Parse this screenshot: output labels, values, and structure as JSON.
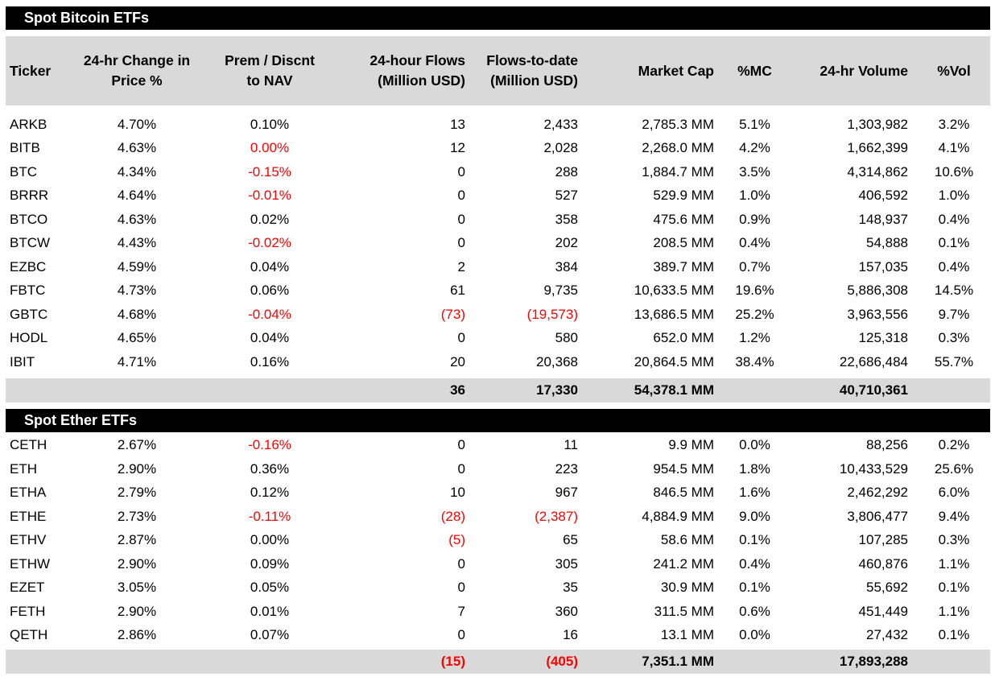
{
  "colors": {
    "negative_value": "#ff0000",
    "band_gray": "#d9d9d9",
    "section_bar_background": "#000000",
    "section_bar_text": "#ffffff",
    "body_text": "#000000",
    "page_background": "#ffffff"
  },
  "header_lines": [
    [
      "Ticker"
    ],
    [
      "24-hr Change in",
      "Price %"
    ],
    [
      "Prem / Discnt",
      "to NAV"
    ],
    [
      "24-hour Flows",
      "(Million USD)"
    ],
    [
      "Flows-to-date",
      "(Million USD)"
    ],
    [
      "Market Cap"
    ],
    [
      "%MC"
    ],
    [
      "24-hr Volume"
    ],
    [
      "%Vol"
    ]
  ],
  "chart_data": [
    {
      "type": "table",
      "title": "Spot Bitcoin ETFs",
      "show_headers": true,
      "columns": [
        "Ticker",
        "24-hr Change in Price %",
        "Prem / Discnt to NAV",
        "24-hour Flows (Million USD)",
        "Flows-to-date (Million USD)",
        "Market Cap",
        "%MC",
        "24-hr Volume",
        "%Vol"
      ],
      "rows": [
        {
          "cells": [
            "ARKB",
            "4.70%",
            "0.10%",
            "13",
            "2,433",
            "2,785.3 MM",
            "5.1%",
            "1,303,982",
            "3.2%"
          ],
          "red": []
        },
        {
          "cells": [
            "BITB",
            "4.63%",
            "0.00%",
            "12",
            "2,028",
            "2,268.0 MM",
            "4.2%",
            "1,662,399",
            "4.1%"
          ],
          "red": [
            2
          ]
        },
        {
          "cells": [
            "BTC",
            "4.34%",
            "-0.15%",
            "0",
            "288",
            "1,884.7 MM",
            "3.5%",
            "4,314,862",
            "10.6%"
          ],
          "red": [
            2
          ]
        },
        {
          "cells": [
            "BRRR",
            "4.64%",
            "-0.01%",
            "0",
            "527",
            "529.9 MM",
            "1.0%",
            "406,592",
            "1.0%"
          ],
          "red": [
            2
          ]
        },
        {
          "cells": [
            "BTCO",
            "4.63%",
            "0.02%",
            "0",
            "358",
            "475.6 MM",
            "0.9%",
            "148,937",
            "0.4%"
          ],
          "red": []
        },
        {
          "cells": [
            "BTCW",
            "4.43%",
            "-0.02%",
            "0",
            "202",
            "208.5 MM",
            "0.4%",
            "54,888",
            "0.1%"
          ],
          "red": [
            2
          ]
        },
        {
          "cells": [
            "EZBC",
            "4.59%",
            "0.04%",
            "2",
            "384",
            "389.7 MM",
            "0.7%",
            "157,035",
            "0.4%"
          ],
          "red": []
        },
        {
          "cells": [
            "FBTC",
            "4.73%",
            "0.06%",
            "61",
            "9,735",
            "10,633.5 MM",
            "19.6%",
            "5,886,308",
            "14.5%"
          ],
          "red": []
        },
        {
          "cells": [
            "GBTC",
            "4.68%",
            "-0.04%",
            "(73)",
            "(19,573)",
            "13,686.5 MM",
            "25.2%",
            "3,963,556",
            "9.7%"
          ],
          "red": [
            2,
            3,
            4
          ]
        },
        {
          "cells": [
            "HODL",
            "4.65%",
            "0.04%",
            "0",
            "580",
            "652.0 MM",
            "1.2%",
            "125,318",
            "0.3%"
          ],
          "red": []
        },
        {
          "cells": [
            "IBIT",
            "4.71%",
            "0.16%",
            "20",
            "20,368",
            "20,864.5 MM",
            "38.4%",
            "22,686,484",
            "55.7%"
          ],
          "red": []
        }
      ],
      "totals": {
        "cells": [
          "",
          "",
          "",
          "36",
          "17,330",
          "54,378.1 MM",
          "",
          "40,710,361",
          ""
        ],
        "red": []
      }
    },
    {
      "type": "table",
      "title": "Spot Ether ETFs",
      "show_headers": false,
      "columns": [
        "Ticker",
        "24-hr Change in Price %",
        "Prem / Discnt to NAV",
        "24-hour Flows (Million USD)",
        "Flows-to-date (Million USD)",
        "Market Cap",
        "%MC",
        "24-hr Volume",
        "%Vol"
      ],
      "rows": [
        {
          "cells": [
            "CETH",
            "2.67%",
            "-0.16%",
            "0",
            "11",
            "9.9 MM",
            "0.0%",
            "88,256",
            "0.2%"
          ],
          "red": [
            2
          ]
        },
        {
          "cells": [
            "ETH",
            "2.90%",
            "0.36%",
            "0",
            "223",
            "954.5 MM",
            "1.8%",
            "10,433,529",
            "25.6%"
          ],
          "red": []
        },
        {
          "cells": [
            "ETHA",
            "2.79%",
            "0.12%",
            "10",
            "967",
            "846.5 MM",
            "1.6%",
            "2,462,292",
            "6.0%"
          ],
          "red": []
        },
        {
          "cells": [
            "ETHE",
            "2.73%",
            "-0.11%",
            "(28)",
            "(2,387)",
            "4,884.9 MM",
            "9.0%",
            "3,806,477",
            "9.4%"
          ],
          "red": [
            2,
            3,
            4
          ]
        },
        {
          "cells": [
            "ETHV",
            "2.87%",
            "0.00%",
            "(5)",
            "65",
            "58.6 MM",
            "0.1%",
            "107,285",
            "0.3%"
          ],
          "red": [
            3
          ]
        },
        {
          "cells": [
            "ETHW",
            "2.90%",
            "0.09%",
            "0",
            "305",
            "241.2 MM",
            "0.4%",
            "460,876",
            "1.1%"
          ],
          "red": []
        },
        {
          "cells": [
            "EZET",
            "3.05%",
            "0.05%",
            "0",
            "35",
            "30.9 MM",
            "0.1%",
            "55,692",
            "0.1%"
          ],
          "red": []
        },
        {
          "cells": [
            "FETH",
            "2.90%",
            "0.01%",
            "7",
            "360",
            "311.5 MM",
            "0.6%",
            "451,449",
            "1.1%"
          ],
          "red": []
        },
        {
          "cells": [
            "QETH",
            "2.86%",
            "0.07%",
            "0",
            "16",
            "13.1 MM",
            "0.0%",
            "27,432",
            "0.1%"
          ],
          "red": []
        }
      ],
      "totals": {
        "cells": [
          "",
          "",
          "",
          "(15)",
          "(405)",
          "7,351.1 MM",
          "",
          "17,893,288",
          ""
        ],
        "red": [
          3,
          4
        ]
      }
    }
  ]
}
